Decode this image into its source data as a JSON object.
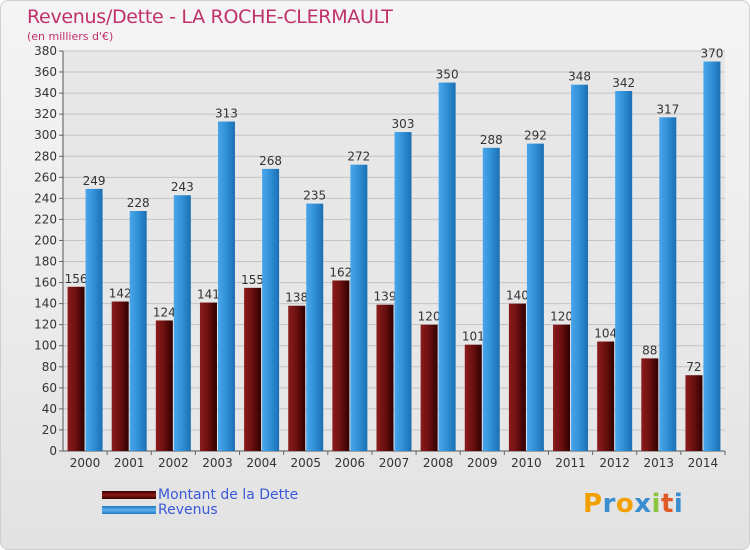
{
  "header": {
    "title": "Revenus/Dette - LA ROCHE-CLERMAULT",
    "subtitle": "(en milliers d'€)"
  },
  "legend": {
    "items": [
      {
        "label": "Montant de la Dette",
        "color": "#6b0f0f"
      },
      {
        "label": "Revenus",
        "color": "#2f8fd6"
      }
    ]
  },
  "logo": {
    "letters": [
      "P",
      "r",
      "o",
      "x",
      "i",
      "t",
      "i"
    ],
    "colors": [
      "#f2a000",
      "#3a8ed0",
      "#f2a000",
      "#3a8ed0",
      "#8cc63f",
      "#e05a28",
      "#3a8ed0"
    ]
  },
  "chart_data": {
    "type": "bar",
    "title": "Revenus/Dette - LA ROCHE-CLERMAULT",
    "subtitle": "(en milliers d'€)",
    "xlabel": "",
    "ylabel": "",
    "ylim": [
      0,
      380
    ],
    "y_ticks": [
      0,
      20,
      40,
      60,
      80,
      100,
      120,
      140,
      160,
      180,
      200,
      220,
      240,
      260,
      280,
      300,
      320,
      340,
      360,
      380
    ],
    "grid": true,
    "categories": [
      "2000",
      "2001",
      "2002",
      "2003",
      "2004",
      "2005",
      "2006",
      "2007",
      "2008",
      "2009",
      "2010",
      "2011",
      "2012",
      "2013",
      "2014"
    ],
    "series": [
      {
        "name": "Montant de la Dette",
        "color": "#6b0f0f",
        "values": [
          156,
          142,
          124,
          141,
          155,
          138,
          162,
          139,
          120,
          101,
          140,
          120,
          104,
          88,
          72
        ]
      },
      {
        "name": "Revenus",
        "color": "#2f8fd6",
        "values": [
          249,
          228,
          243,
          313,
          268,
          235,
          272,
          303,
          350,
          288,
          292,
          348,
          342,
          317,
          370
        ]
      }
    ]
  }
}
